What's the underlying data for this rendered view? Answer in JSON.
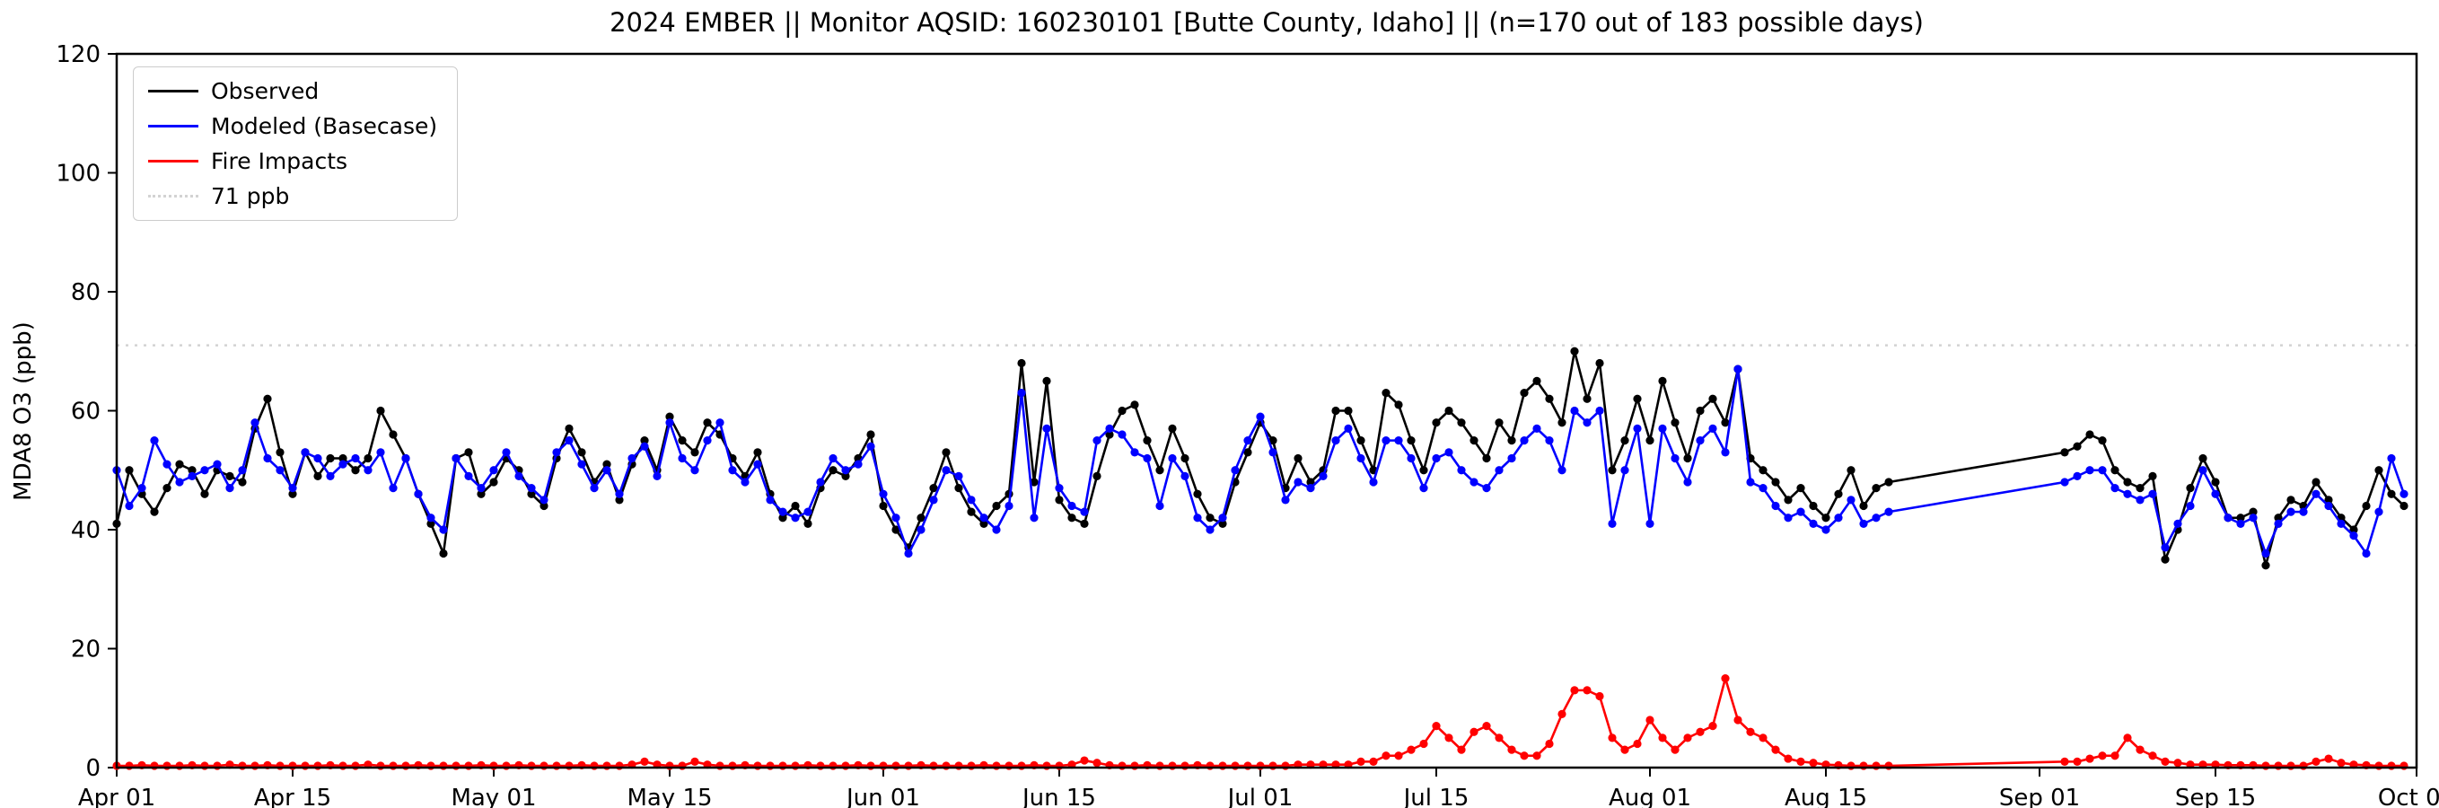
{
  "title": "2024 EMBER || Monitor AQSID: 160230101 [Butte County, Idaho] || (n=170 out of 183 possible days)",
  "chart_data": {
    "type": "line",
    "title": "2024 EMBER || Monitor AQSID: 160230101 [Butte County, Idaho] || (n=170 out of 183 possible days)",
    "xlabel": "",
    "ylabel": "MDA8 O3 (ppb)",
    "ylim": [
      0,
      120
    ],
    "xlim": [
      0,
      183
    ],
    "yticks": [
      0,
      20,
      40,
      60,
      80,
      100,
      120
    ],
    "xticks": {
      "positions": [
        0,
        14,
        30,
        44,
        61,
        75,
        91,
        105,
        122,
        136,
        153,
        167,
        183
      ],
      "labels": [
        "Apr 01",
        "Apr 15",
        "May 01",
        "May 15",
        "Jun 01",
        "Jun 15",
        "Jul 01",
        "Jul 15",
        "Aug 01",
        "Aug 15",
        "Sep 01",
        "Sep 15",
        "Oct 01"
      ]
    },
    "grid": false,
    "legend_position": "upper left",
    "threshold": {
      "value": 71,
      "label": "71 ppb",
      "color": "#d3d3d3",
      "style": "dotted"
    },
    "legend": [
      {
        "label": "Observed",
        "color": "#000000",
        "style": "solid"
      },
      {
        "label": "Modeled (Basecase)",
        "color": "#0000ff",
        "style": "solid"
      },
      {
        "label": "Fire Impacts",
        "color": "#ff0000",
        "style": "solid"
      },
      {
        "label": "71 ppb",
        "color": "#d3d3d3",
        "style": "dotted"
      }
    ],
    "x_days": [
      0,
      1,
      2,
      3,
      4,
      5,
      6,
      7,
      8,
      9,
      10,
      11,
      12,
      13,
      14,
      15,
      16,
      17,
      18,
      19,
      20,
      21,
      22,
      23,
      24,
      25,
      26,
      27,
      28,
      29,
      30,
      31,
      32,
      33,
      34,
      35,
      36,
      37,
      38,
      39,
      40,
      41,
      42,
      43,
      44,
      45,
      46,
      47,
      48,
      49,
      50,
      51,
      52,
      53,
      54,
      55,
      56,
      57,
      58,
      59,
      60,
      61,
      62,
      63,
      64,
      65,
      66,
      67,
      68,
      69,
      70,
      71,
      72,
      73,
      74,
      75,
      76,
      77,
      78,
      79,
      80,
      81,
      82,
      83,
      84,
      85,
      86,
      87,
      88,
      89,
      90,
      91,
      92,
      93,
      94,
      95,
      96,
      97,
      98,
      99,
      100,
      101,
      102,
      103,
      104,
      105,
      106,
      107,
      108,
      109,
      110,
      111,
      112,
      113,
      114,
      115,
      116,
      117,
      118,
      119,
      120,
      121,
      122,
      123,
      124,
      125,
      126,
      127,
      128,
      129,
      130,
      131,
      132,
      133,
      134,
      135,
      136,
      137,
      138,
      139,
      140,
      141,
      155,
      156,
      157,
      158,
      159,
      160,
      161,
      162,
      163,
      164,
      165,
      166,
      167,
      168,
      169,
      170,
      171,
      172,
      173,
      174,
      175,
      176,
      177,
      178,
      179,
      180,
      181,
      182
    ],
    "series": [
      {
        "name": "Observed",
        "color": "#000000",
        "values": [
          41,
          50,
          46,
          43,
          47,
          51,
          50,
          46,
          50,
          49,
          48,
          57,
          62,
          53,
          46,
          53,
          49,
          52,
          52,
          50,
          52,
          60,
          56,
          52,
          46,
          41,
          36,
          52,
          53,
          46,
          48,
          52,
          50,
          46,
          44,
          52,
          57,
          53,
          48,
          51,
          45,
          51,
          55,
          50,
          59,
          55,
          53,
          58,
          56,
          52,
          49,
          53,
          46,
          42,
          44,
          41,
          47,
          50,
          49,
          52,
          56,
          44,
          40,
          37,
          42,
          47,
          53,
          47,
          43,
          41,
          44,
          46,
          68,
          48,
          65,
          45,
          42,
          41,
          49,
          56,
          60,
          61,
          55,
          50,
          57,
          52,
          46,
          42,
          41,
          48,
          53,
          58,
          55,
          47,
          52,
          48,
          50,
          60,
          60,
          55,
          50,
          63,
          61,
          55,
          50,
          58,
          60,
          58,
          55,
          52,
          58,
          55,
          63,
          65,
          62,
          58,
          70,
          62,
          68,
          50,
          55,
          62,
          55,
          65,
          58,
          52,
          60,
          62,
          58,
          67,
          52,
          50,
          48,
          45,
          47,
          44,
          42,
          46,
          50,
          44,
          47,
          48,
          53,
          54,
          56,
          55,
          50,
          48,
          47,
          49,
          35,
          40,
          47,
          52,
          48,
          42,
          42,
          43,
          34,
          42,
          45,
          44,
          48,
          45,
          42,
          40,
          44,
          50,
          46,
          44
        ]
      },
      {
        "name": "Modeled (Basecase)",
        "color": "#0000ff",
        "values": [
          50,
          44,
          47,
          55,
          51,
          48,
          49,
          50,
          51,
          47,
          50,
          58,
          52,
          50,
          47,
          53,
          52,
          49,
          51,
          52,
          50,
          53,
          47,
          52,
          46,
          42,
          40,
          52,
          49,
          47,
          50,
          53,
          49,
          47,
          45,
          53,
          55,
          51,
          47,
          50,
          46,
          52,
          54,
          49,
          58,
          52,
          50,
          55,
          58,
          50,
          48,
          51,
          45,
          43,
          42,
          43,
          48,
          52,
          50,
          51,
          54,
          46,
          42,
          36,
          40,
          45,
          50,
          49,
          45,
          42,
          40,
          44,
          63,
          42,
          57,
          47,
          44,
          43,
          55,
          57,
          56,
          53,
          52,
          44,
          52,
          49,
          42,
          40,
          42,
          50,
          55,
          59,
          53,
          45,
          48,
          47,
          49,
          55,
          57,
          52,
          48,
          55,
          55,
          52,
          47,
          52,
          53,
          50,
          48,
          47,
          50,
          52,
          55,
          57,
          55,
          50,
          60,
          58,
          60,
          41,
          50,
          57,
          41,
          57,
          52,
          48,
          55,
          57,
          53,
          67,
          48,
          47,
          44,
          42,
          43,
          41,
          40,
          42,
          45,
          41,
          42,
          43,
          48,
          49,
          50,
          50,
          47,
          46,
          45,
          46,
          37,
          41,
          44,
          50,
          46,
          42,
          41,
          42,
          36,
          41,
          43,
          43,
          46,
          44,
          41,
          39,
          36,
          43,
          52,
          46
        ]
      },
      {
        "name": "Fire Impacts",
        "color": "#ff0000",
        "values": [
          0.3,
          0.3,
          0.4,
          0.3,
          0.3,
          0.3,
          0.4,
          0.3,
          0.3,
          0.5,
          0.3,
          0.3,
          0.4,
          0.3,
          0.3,
          0.3,
          0.3,
          0.4,
          0.3,
          0.3,
          0.5,
          0.3,
          0.3,
          0.3,
          0.4,
          0.3,
          0.3,
          0.3,
          0.3,
          0.4,
          0.3,
          0.3,
          0.4,
          0.3,
          0.3,
          0.3,
          0.3,
          0.4,
          0.3,
          0.3,
          0.3,
          0.5,
          1.0,
          0.5,
          0.3,
          0.3,
          1.0,
          0.5,
          0.3,
          0.3,
          0.4,
          0.3,
          0.3,
          0.3,
          0.3,
          0.4,
          0.3,
          0.3,
          0.3,
          0.4,
          0.3,
          0.3,
          0.3,
          0.3,
          0.4,
          0.3,
          0.3,
          0.3,
          0.3,
          0.4,
          0.3,
          0.3,
          0.3,
          0.4,
          0.3,
          0.3,
          0.5,
          1.2,
          0.8,
          0.4,
          0.3,
          0.3,
          0.4,
          0.3,
          0.3,
          0.3,
          0.4,
          0.3,
          0.3,
          0.3,
          0.3,
          0.3,
          0.3,
          0.3,
          0.5,
          0.5,
          0.5,
          0.5,
          0.5,
          1.0,
          1.0,
          2.0,
          2.0,
          3.0,
          4.0,
          7.0,
          5.0,
          3.0,
          6.0,
          7.0,
          5.0,
          3.0,
          2.0,
          2.0,
          4.0,
          9.0,
          13.0,
          13.0,
          12.0,
          5.0,
          3.0,
          4.0,
          8.0,
          5.0,
          3.0,
          5.0,
          6.0,
          7.0,
          15.0,
          8.0,
          6.0,
          5.0,
          3.0,
          1.5,
          1.0,
          0.8,
          0.5,
          0.4,
          0.3,
          0.3,
          0.3,
          0.3,
          1.0,
          1.0,
          1.5,
          2.0,
          2.0,
          5.0,
          3.0,
          2.0,
          1.0,
          0.8,
          0.5,
          0.5,
          0.5,
          0.4,
          0.4,
          0.4,
          0.3,
          0.3,
          0.3,
          0.3,
          1.0,
          1.5,
          0.8,
          0.5,
          0.4,
          0.3,
          0.3,
          0.3
        ]
      }
    ]
  }
}
